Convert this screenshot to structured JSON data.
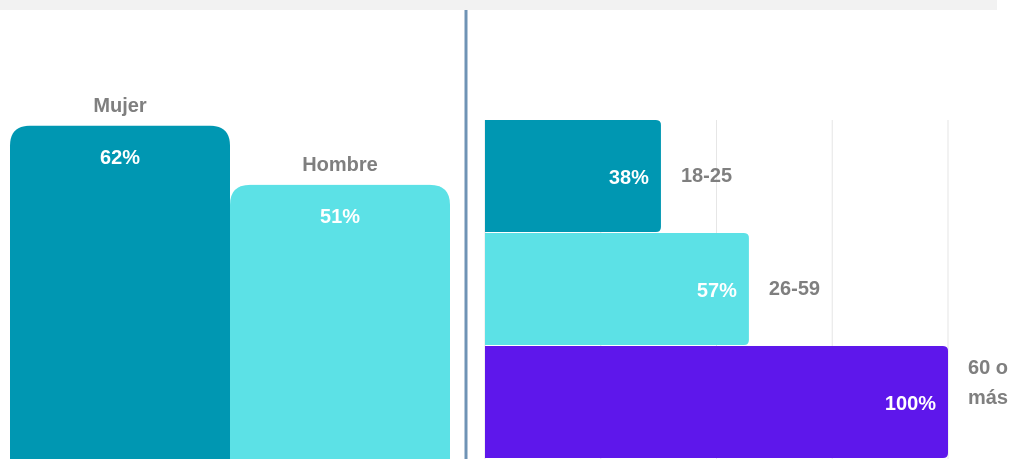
{
  "charts": [
    {
      "type": "bar",
      "categories": [
        "Mujer",
        "Hombre"
      ],
      "values": [
        62,
        51
      ],
      "value_labels": [
        "62%",
        "51%"
      ],
      "colors": [
        "#0097b2",
        "#5ce1e6"
      ],
      "ylim": [
        0,
        80
      ]
    },
    {
      "type": "barh",
      "categories": [
        "18-25",
        "26-59",
        "60 o más"
      ],
      "values": [
        38,
        57,
        100
      ],
      "value_labels": [
        "38%",
        "57%",
        "100%"
      ],
      "colors": [
        "#0097b2",
        "#5ce1e6",
        "#5e17eb"
      ],
      "xlim": [
        0,
        100
      ],
      "xticks": [
        0,
        25,
        50,
        75,
        100
      ],
      "grid": true
    }
  ]
}
